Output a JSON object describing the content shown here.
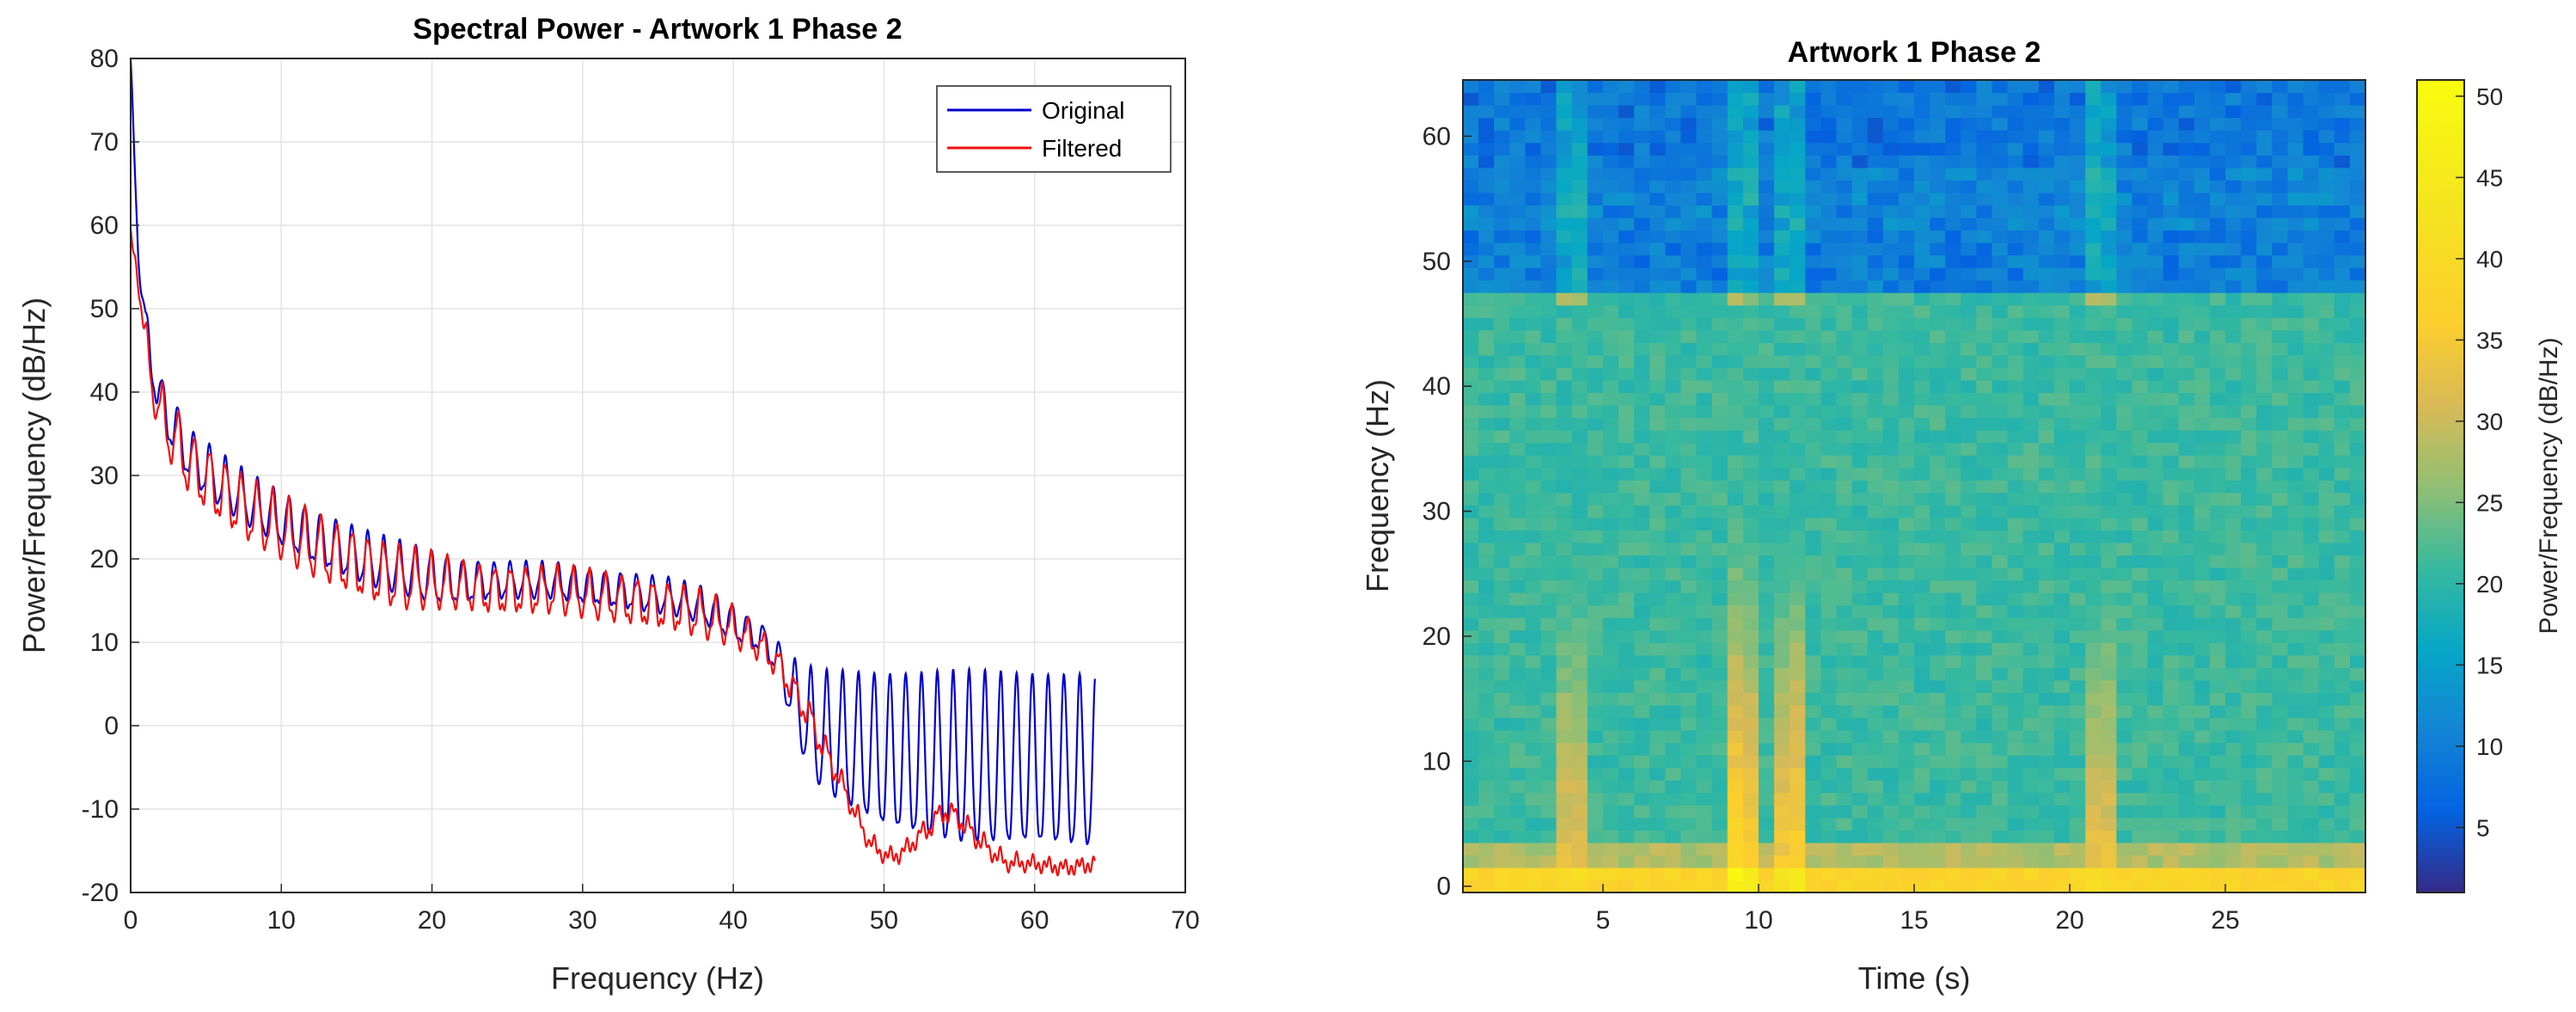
{
  "chart_data": [
    {
      "type": "line",
      "title": "Spectral Power - Artwork 1 Phase 2",
      "xlabel": "Frequency (Hz)",
      "ylabel": "Power/Frequency (dB/Hz)",
      "xlim": [
        0,
        70
      ],
      "ylim": [
        -20,
        80
      ],
      "xticks": [
        "0",
        "10",
        "20",
        "30",
        "40",
        "50",
        "60",
        "70"
      ],
      "yticks": [
        "-20",
        "-10",
        "0",
        "10",
        "20",
        "30",
        "40",
        "50",
        "60",
        "70",
        "80"
      ],
      "grid": true,
      "legend_position": "top-right",
      "series": [
        {
          "name": "Original",
          "color": "#0000cc",
          "x": [
            0,
            0.5,
            1,
            2,
            4,
            6,
            8,
            10,
            12,
            14,
            16,
            18,
            20,
            22,
            24,
            26,
            28,
            30,
            32,
            34,
            36,
            38,
            40,
            42,
            43,
            44,
            45,
            46,
            48,
            50,
            55,
            60,
            64
          ],
          "values": [
            80,
            58,
            50,
            42,
            35.5,
            32.5,
            30,
            28,
            26,
            24.5,
            23,
            22,
            21,
            20,
            19.5,
            19.5,
            19.5,
            19,
            18.5,
            18,
            17.5,
            16.5,
            14.5,
            12,
            10,
            8,
            7,
            6.5,
            6.5,
            6.5,
            6.5,
            6.5,
            6
          ],
          "ripple_depth": [
            0,
            2,
            5,
            6,
            6,
            6,
            6,
            6,
            6,
            6,
            6,
            6,
            6,
            5,
            4,
            4,
            4,
            4,
            4,
            4,
            4,
            4,
            4,
            3,
            4,
            8,
            12,
            14,
            16,
            18,
            20,
            20,
            20
          ]
        },
        {
          "name": "Filtered",
          "color": "#ee1111",
          "x": [
            0,
            0.5,
            1,
            2,
            4,
            6,
            8,
            10,
            12,
            14,
            16,
            18,
            20,
            22,
            24,
            26,
            28,
            30,
            32,
            34,
            36,
            38,
            40,
            42,
            43,
            44,
            45,
            46,
            47,
            48,
            49,
            50,
            51,
            52,
            53,
            54,
            55,
            56,
            57,
            58,
            60,
            62,
            64
          ],
          "values": [
            59,
            55,
            48,
            41,
            35,
            32,
            29.5,
            27.5,
            25.5,
            24,
            22.5,
            21.5,
            20.5,
            19.5,
            19,
            19,
            19,
            18.5,
            18,
            17.5,
            17,
            16,
            14,
            11,
            9,
            6,
            3,
            -1,
            -5,
            -9,
            -13,
            -15,
            -15,
            -13,
            -11,
            -9,
            -10,
            -12,
            -14,
            -15.5,
            -16,
            -16.5,
            -16
          ],
          "ripple_depth": [
            0,
            2,
            5,
            7,
            7,
            7,
            7,
            7,
            7,
            7,
            7,
            7,
            6,
            5,
            5,
            5,
            5,
            5,
            5,
            5,
            5,
            5,
            4,
            3,
            3,
            3,
            3,
            3,
            2,
            2,
            1.5,
            1,
            1,
            1.5,
            2,
            2,
            2,
            2,
            1.5,
            1.5,
            1,
            1,
            1
          ]
        }
      ]
    },
    {
      "type": "heatmap",
      "title": "Artwork 1 Phase 2",
      "xlabel": "Time (s)",
      "ylabel": "Frequency (Hz)",
      "xlim": [
        0.5,
        29.5
      ],
      "ylim": [
        -0.5,
        64.5
      ],
      "xticks": [
        "5",
        "10",
        "15",
        "20",
        "25"
      ],
      "yticks": [
        "0",
        "10",
        "20",
        "30",
        "40",
        "50",
        "60"
      ],
      "time_bins": 58,
      "freq_bins": 65,
      "colorbar": {
        "label": "Power/Frequency (dB/Hz)",
        "range": [
          1,
          51
        ],
        "ticks": [
          "5",
          "10",
          "15",
          "20",
          "25",
          "30",
          "35",
          "40",
          "45",
          "50"
        ],
        "colormap": "parula"
      },
      "bands": [
        {
          "freq_range_hz": [
            0,
            1
          ],
          "level_db": 38
        },
        {
          "freq_range_hz": [
            2,
            3
          ],
          "level_db": 28
        },
        {
          "freq_range_hz": [
            4,
            47
          ],
          "level_db": 21
        },
        {
          "freq_range_hz": [
            48,
            52
          ],
          "level_db": 11
        },
        {
          "freq_range_hz": [
            53,
            57
          ],
          "level_db": 12
        },
        {
          "freq_range_hz": [
            58,
            64
          ],
          "level_db": 10
        }
      ],
      "bright_columns": [
        {
          "time_s": 9.3,
          "level_db": 32
        },
        {
          "time_s": 9.8,
          "level_db": 30
        },
        {
          "time_s": 10.7,
          "level_db": 28
        },
        {
          "time_s": 11.2,
          "level_db": 30
        },
        {
          "time_s": 4.0,
          "level_db": 26
        },
        {
          "time_s": 21.0,
          "level_db": 26
        }
      ]
    }
  ]
}
